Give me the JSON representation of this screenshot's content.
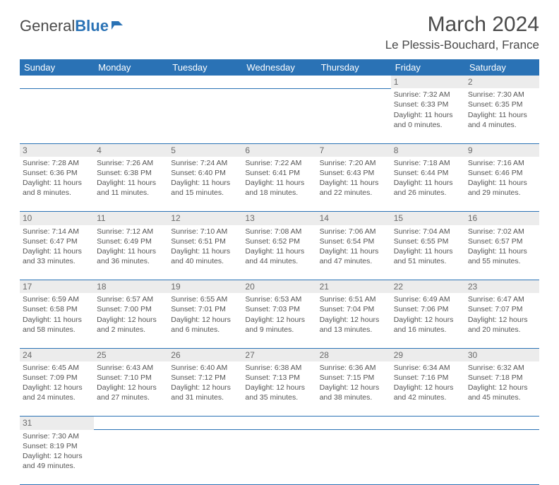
{
  "logo": {
    "text1": "General",
    "text2": "Blue"
  },
  "title": "March 2024",
  "location": "Le Plessis-Bouchard, France",
  "colors": {
    "header_bg": "#2a72b5",
    "daynum_bg": "#ececec"
  },
  "day_headers": [
    "Sunday",
    "Monday",
    "Tuesday",
    "Wednesday",
    "Thursday",
    "Friday",
    "Saturday"
  ],
  "weeks": [
    {
      "nums": [
        "",
        "",
        "",
        "",
        "",
        "1",
        "2"
      ],
      "cells": [
        null,
        null,
        null,
        null,
        null,
        {
          "sr": "Sunrise: 7:32 AM",
          "ss": "Sunset: 6:33 PM",
          "dl": "Daylight: 11 hours and 0 minutes."
        },
        {
          "sr": "Sunrise: 7:30 AM",
          "ss": "Sunset: 6:35 PM",
          "dl": "Daylight: 11 hours and 4 minutes."
        }
      ]
    },
    {
      "nums": [
        "3",
        "4",
        "5",
        "6",
        "7",
        "8",
        "9"
      ],
      "cells": [
        {
          "sr": "Sunrise: 7:28 AM",
          "ss": "Sunset: 6:36 PM",
          "dl": "Daylight: 11 hours and 8 minutes."
        },
        {
          "sr": "Sunrise: 7:26 AM",
          "ss": "Sunset: 6:38 PM",
          "dl": "Daylight: 11 hours and 11 minutes."
        },
        {
          "sr": "Sunrise: 7:24 AM",
          "ss": "Sunset: 6:40 PM",
          "dl": "Daylight: 11 hours and 15 minutes."
        },
        {
          "sr": "Sunrise: 7:22 AM",
          "ss": "Sunset: 6:41 PM",
          "dl": "Daylight: 11 hours and 18 minutes."
        },
        {
          "sr": "Sunrise: 7:20 AM",
          "ss": "Sunset: 6:43 PM",
          "dl": "Daylight: 11 hours and 22 minutes."
        },
        {
          "sr": "Sunrise: 7:18 AM",
          "ss": "Sunset: 6:44 PM",
          "dl": "Daylight: 11 hours and 26 minutes."
        },
        {
          "sr": "Sunrise: 7:16 AM",
          "ss": "Sunset: 6:46 PM",
          "dl": "Daylight: 11 hours and 29 minutes."
        }
      ]
    },
    {
      "nums": [
        "10",
        "11",
        "12",
        "13",
        "14",
        "15",
        "16"
      ],
      "cells": [
        {
          "sr": "Sunrise: 7:14 AM",
          "ss": "Sunset: 6:47 PM",
          "dl": "Daylight: 11 hours and 33 minutes."
        },
        {
          "sr": "Sunrise: 7:12 AM",
          "ss": "Sunset: 6:49 PM",
          "dl": "Daylight: 11 hours and 36 minutes."
        },
        {
          "sr": "Sunrise: 7:10 AM",
          "ss": "Sunset: 6:51 PM",
          "dl": "Daylight: 11 hours and 40 minutes."
        },
        {
          "sr": "Sunrise: 7:08 AM",
          "ss": "Sunset: 6:52 PM",
          "dl": "Daylight: 11 hours and 44 minutes."
        },
        {
          "sr": "Sunrise: 7:06 AM",
          "ss": "Sunset: 6:54 PM",
          "dl": "Daylight: 11 hours and 47 minutes."
        },
        {
          "sr": "Sunrise: 7:04 AM",
          "ss": "Sunset: 6:55 PM",
          "dl": "Daylight: 11 hours and 51 minutes."
        },
        {
          "sr": "Sunrise: 7:02 AM",
          "ss": "Sunset: 6:57 PM",
          "dl": "Daylight: 11 hours and 55 minutes."
        }
      ]
    },
    {
      "nums": [
        "17",
        "18",
        "19",
        "20",
        "21",
        "22",
        "23"
      ],
      "cells": [
        {
          "sr": "Sunrise: 6:59 AM",
          "ss": "Sunset: 6:58 PM",
          "dl": "Daylight: 11 hours and 58 minutes."
        },
        {
          "sr": "Sunrise: 6:57 AM",
          "ss": "Sunset: 7:00 PM",
          "dl": "Daylight: 12 hours and 2 minutes."
        },
        {
          "sr": "Sunrise: 6:55 AM",
          "ss": "Sunset: 7:01 PM",
          "dl": "Daylight: 12 hours and 6 minutes."
        },
        {
          "sr": "Sunrise: 6:53 AM",
          "ss": "Sunset: 7:03 PM",
          "dl": "Daylight: 12 hours and 9 minutes."
        },
        {
          "sr": "Sunrise: 6:51 AM",
          "ss": "Sunset: 7:04 PM",
          "dl": "Daylight: 12 hours and 13 minutes."
        },
        {
          "sr": "Sunrise: 6:49 AM",
          "ss": "Sunset: 7:06 PM",
          "dl": "Daylight: 12 hours and 16 minutes."
        },
        {
          "sr": "Sunrise: 6:47 AM",
          "ss": "Sunset: 7:07 PM",
          "dl": "Daylight: 12 hours and 20 minutes."
        }
      ]
    },
    {
      "nums": [
        "24",
        "25",
        "26",
        "27",
        "28",
        "29",
        "30"
      ],
      "cells": [
        {
          "sr": "Sunrise: 6:45 AM",
          "ss": "Sunset: 7:09 PM",
          "dl": "Daylight: 12 hours and 24 minutes."
        },
        {
          "sr": "Sunrise: 6:43 AM",
          "ss": "Sunset: 7:10 PM",
          "dl": "Daylight: 12 hours and 27 minutes."
        },
        {
          "sr": "Sunrise: 6:40 AM",
          "ss": "Sunset: 7:12 PM",
          "dl": "Daylight: 12 hours and 31 minutes."
        },
        {
          "sr": "Sunrise: 6:38 AM",
          "ss": "Sunset: 7:13 PM",
          "dl": "Daylight: 12 hours and 35 minutes."
        },
        {
          "sr": "Sunrise: 6:36 AM",
          "ss": "Sunset: 7:15 PM",
          "dl": "Daylight: 12 hours and 38 minutes."
        },
        {
          "sr": "Sunrise: 6:34 AM",
          "ss": "Sunset: 7:16 PM",
          "dl": "Daylight: 12 hours and 42 minutes."
        },
        {
          "sr": "Sunrise: 6:32 AM",
          "ss": "Sunset: 7:18 PM",
          "dl": "Daylight: 12 hours and 45 minutes."
        }
      ]
    },
    {
      "nums": [
        "31",
        "",
        "",
        "",
        "",
        "",
        ""
      ],
      "cells": [
        {
          "sr": "Sunrise: 7:30 AM",
          "ss": "Sunset: 8:19 PM",
          "dl": "Daylight: 12 hours and 49 minutes."
        },
        null,
        null,
        null,
        null,
        null,
        null
      ]
    }
  ]
}
